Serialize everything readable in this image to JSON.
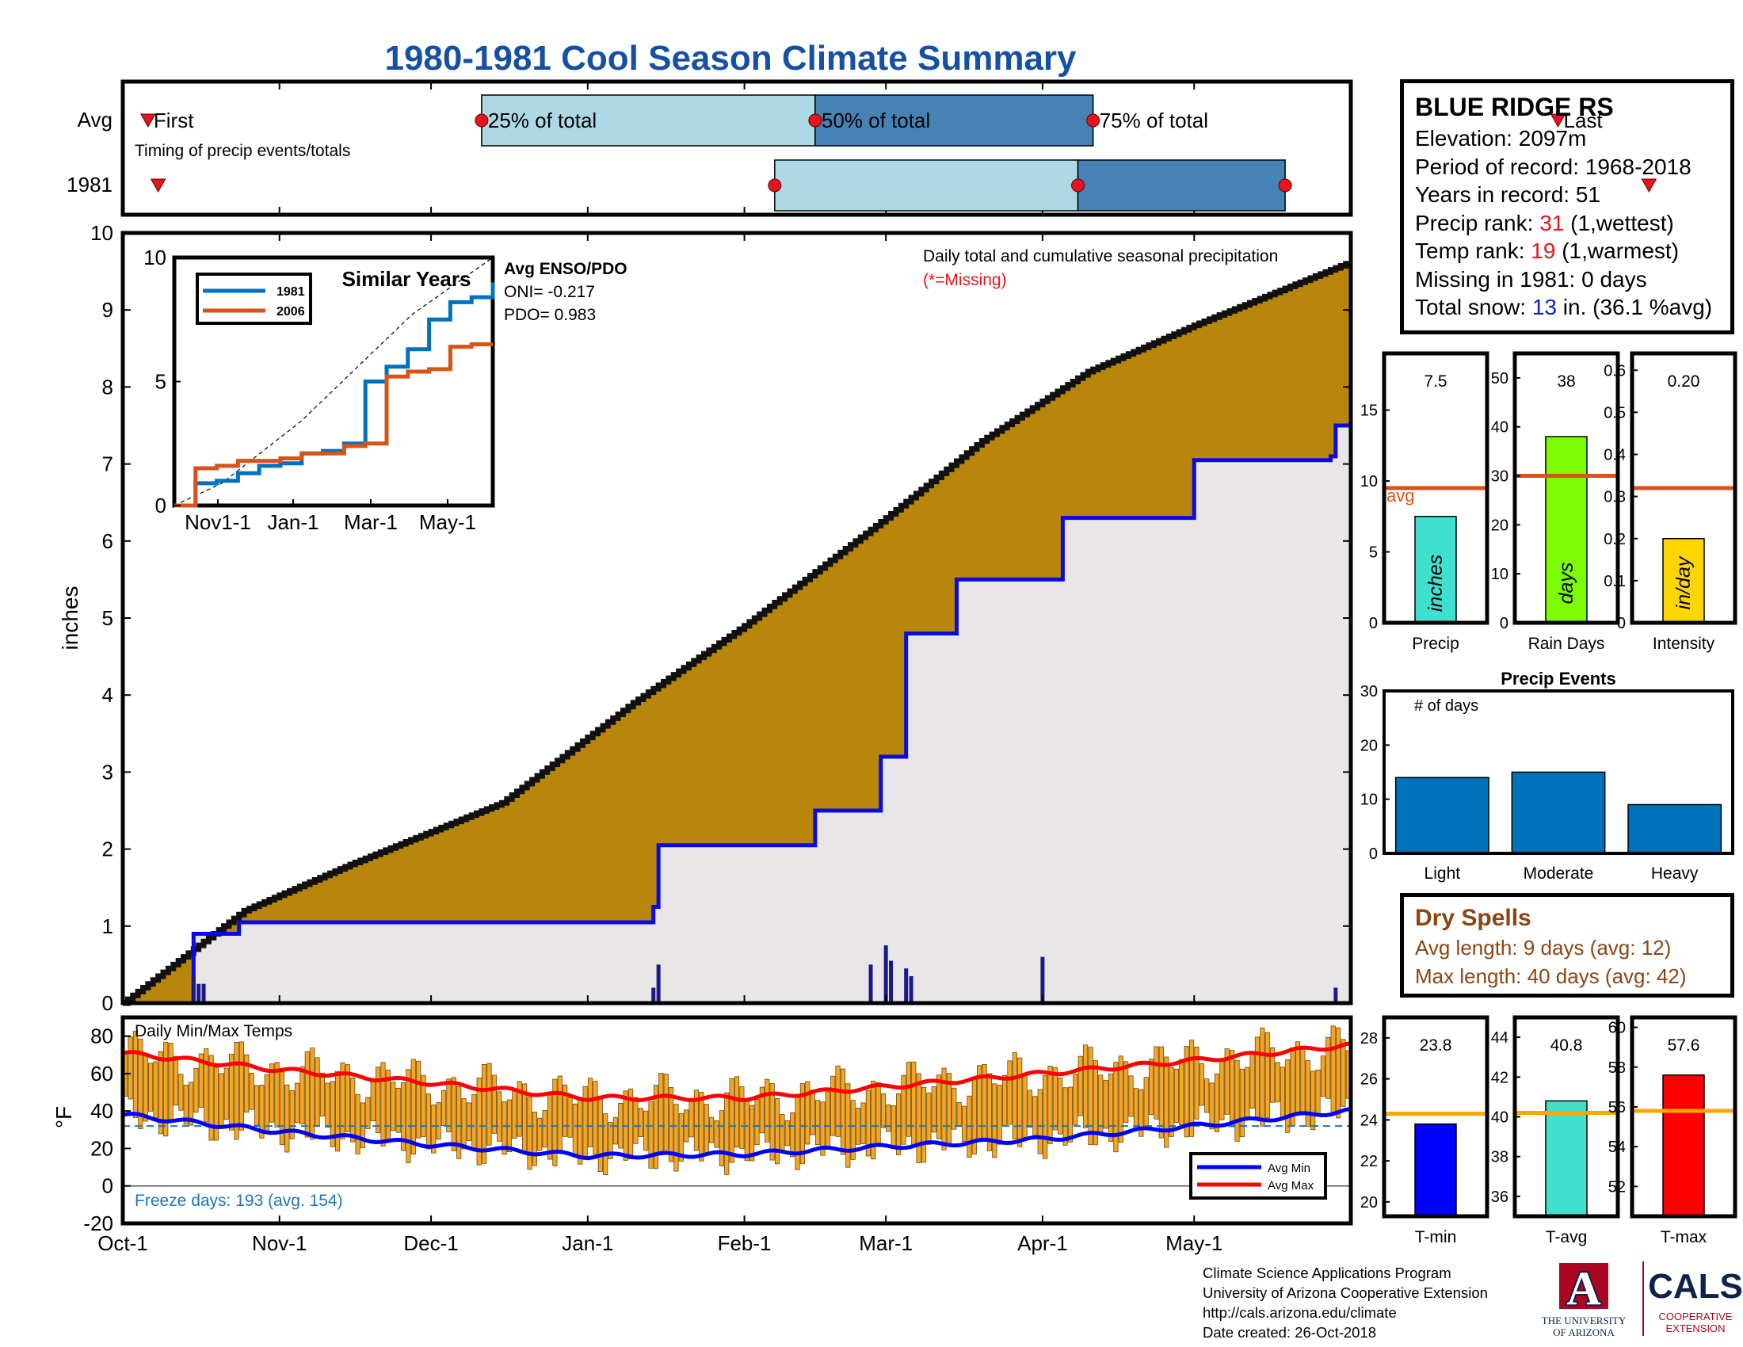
{
  "title": "1980-1981 Cool Season Climate Summary",
  "colors": {
    "title": "#1550a3",
    "cumulative_fill": "#b8860b",
    "avg_fill": "#e8e6e6",
    "avg_line": "#0a0ae6",
    "inset_1981": "#0072bd",
    "inset_2006": "#d95319",
    "bar_light": "#add8e6",
    "bar_dark": "#4682b4",
    "marker_red": "#e6141e",
    "precip_bar": "#40e0d0",
    "rain_days_bar": "#7cfc00",
    "intensity_bar": "#ffd700",
    "avg_line_orange": "#d95319",
    "events_bar": "#0072bd",
    "temp_bar": "#f5a623",
    "tmin_bar": "#0000ff",
    "tavg_bar": "#40e0d0",
    "tmax_bar": "#ff0000",
    "temp_avg_line": "#ffa500"
  },
  "timing": {
    "rows": [
      "Avg",
      "1981"
    ],
    "caption": "Timing of precip events/totals",
    "avg_labels": [
      "First",
      "25% of total",
      "50% of total",
      "75% of total",
      "Last"
    ],
    "avg_days": {
      "first": 5,
      "p25": 71,
      "p50": 137,
      "p75": 192,
      "last": 284
    },
    "obs_days": {
      "first": 7,
      "p25": 129,
      "p50": 189,
      "p75": 230,
      "last": 302
    }
  },
  "main_chart": {
    "ylabel": "inches",
    "yticks": [
      "0",
      "1",
      "2",
      "3",
      "4",
      "5",
      "6",
      "7",
      "8",
      "9",
      "10"
    ],
    "ylim": [
      0,
      10
    ],
    "legend_title": "Daily total and cumulative seasonal precipitation",
    "missing_note": "(*=Missing)",
    "xticks": [
      "Oct-1",
      "Nov-1",
      "Dec-1",
      "Jan-1",
      "Feb-1",
      "Mar-1",
      "Apr-1",
      "May-1"
    ]
  },
  "chart_data": [
    {
      "type": "area",
      "title": "Daily total and cumulative seasonal precipitation",
      "ylabel": "inches",
      "ylim": [
        0,
        10
      ],
      "x_range": [
        "Oct-1",
        "May-31"
      ],
      "series": [
        {
          "name": "Avg cumulative",
          "x": [
            "Oct-1",
            "Oct-10",
            "Oct-25",
            "Nov-15",
            "Dec-15",
            "Jan-10",
            "Feb-1",
            "Mar-1",
            "Mar-20",
            "Apr-10",
            "May-1",
            "May-31"
          ],
          "values": [
            0,
            0.45,
            1.2,
            1.8,
            2.6,
            3.9,
            4.9,
            6.3,
            7.3,
            8.2,
            8.8,
            9.6
          ]
        },
        {
          "name": "1981",
          "x": [
            "Oct-1",
            "Oct-14",
            "Oct-15",
            "Oct-24",
            "Jan-14",
            "Jan-15",
            "Feb-15",
            "Feb-28",
            "Mar-5",
            "Mar-15",
            "Apr-5",
            "May-1",
            "May-28",
            "May-29"
          ],
          "values": [
            0,
            0,
            0.9,
            1.05,
            1.25,
            2.05,
            2.5,
            3.2,
            4.8,
            5.5,
            6.3,
            7.05,
            7.1,
            7.5
          ]
        }
      ],
      "daily_precip": {
        "x": [
          "Oct-15",
          "Oct-16",
          "Oct-17",
          "Jan-14",
          "Jan-15",
          "Feb-26",
          "Mar-1",
          "Mar-2",
          "Mar-5",
          "Mar-6",
          "Apr-1",
          "May-29"
        ],
        "values": [
          0.35,
          0.25,
          0.25,
          0.2,
          0.5,
          0.5,
          0.75,
          0.55,
          0.45,
          0.35,
          0.6,
          0.2
        ]
      }
    },
    {
      "type": "line",
      "title": "Similar Years",
      "ylim": [
        0,
        10
      ],
      "yticks": [
        "0",
        "5",
        "10"
      ],
      "xticks": [
        "Nov1-1",
        "Jan-1",
        "Mar-1",
        "May-1"
      ],
      "series": [
        {
          "name": "1981",
          "values": [
            0,
            0.9,
            1.0,
            1.3,
            1.6,
            1.7,
            2.1,
            2.2,
            2.5,
            5.0,
            5.6,
            6.3,
            7.5,
            8.2,
            8.4,
            9.0
          ]
        },
        {
          "name": "2006",
          "values": [
            0,
            1.5,
            1.6,
            1.8,
            1.8,
            1.9,
            2.1,
            2.1,
            2.4,
            2.5,
            5.2,
            5.4,
            5.5,
            6.4,
            6.5,
            6.5
          ]
        }
      ],
      "annotations": {
        "heading": "Avg ENSO/PDO",
        "oni": "ONI= -0.217",
        "pdo": "PDO= 0.983"
      }
    },
    {
      "type": "bar",
      "title": "Precip",
      "values": [
        7.5
      ],
      "avg": 9.5,
      "ylim": [
        0,
        19
      ],
      "yticks": [
        "0",
        "5",
        "10",
        "15"
      ],
      "value_label": "7.5",
      "bar_label": "inches",
      "avg_label": "avg"
    },
    {
      "type": "bar",
      "title": "Rain Days",
      "values": [
        38
      ],
      "avg": 30,
      "ylim": [
        0,
        55
      ],
      "yticks": [
        "0",
        "10",
        "20",
        "30",
        "40",
        "50"
      ],
      "value_label": "38",
      "bar_label": "days"
    },
    {
      "type": "bar",
      "title": "Intensity",
      "values": [
        0.2
      ],
      "avg": 0.32,
      "ylim": [
        0,
        0.64
      ],
      "yticks": [
        "0",
        "0.1",
        "0.2",
        "0.3",
        "0.4",
        "0.5",
        "0.6"
      ],
      "value_label": "0.20",
      "bar_label": "in/day"
    },
    {
      "type": "bar",
      "title": "Precip Events",
      "categories": [
        "Light",
        "Moderate",
        "Heavy"
      ],
      "values": [
        14,
        15,
        9
      ],
      "ylim": [
        0,
        30
      ],
      "yticks": [
        "0",
        "10",
        "20",
        "30"
      ],
      "annotation": "# of days"
    },
    {
      "type": "bar",
      "title": "Daily Min/Max Temps",
      "ylabel": "°F",
      "ylim": [
        -20,
        90
      ],
      "yticks": [
        "-20",
        "0",
        "20",
        "40",
        "60",
        "80"
      ],
      "series": [
        {
          "name": "Avg Min"
        },
        {
          "name": "Avg Max"
        }
      ],
      "avg_max_x": [
        "Oct-1",
        "Nov-1",
        "Dec-1",
        "Jan-1",
        "Feb-1",
        "Mar-1",
        "Apr-1",
        "May-1",
        "May-31"
      ],
      "avg_max": [
        71,
        62,
        55,
        47,
        47,
        53,
        60,
        67,
        75
      ],
      "avg_min_x": [
        "Oct-1",
        "Nov-1",
        "Dec-1",
        "Jan-1",
        "Feb-1",
        "Mar-1",
        "Apr-1",
        "May-1",
        "May-31"
      ],
      "avg_min": [
        38,
        29,
        22,
        16,
        17,
        21,
        25,
        32,
        40
      ],
      "freeze_note": "Freeze days: 193 (avg. 154)"
    },
    {
      "type": "bar",
      "title": "T-min",
      "values": [
        23.8
      ],
      "avg": 24.3,
      "ylim": [
        19.3,
        29
      ],
      "yticks": [
        "20",
        "22",
        "24",
        "26",
        "28"
      ],
      "value_label": "23.8"
    },
    {
      "type": "bar",
      "title": "T-avg",
      "values": [
        40.8
      ],
      "avg": 40.2,
      "ylim": [
        35,
        45
      ],
      "yticks": [
        "36",
        "38",
        "40",
        "42",
        "44"
      ],
      "value_label": "40.8"
    },
    {
      "type": "bar",
      "title": "T-max",
      "values": [
        57.6
      ],
      "avg": 55.8,
      "ylim": [
        50.5,
        60.5
      ],
      "yticks": [
        "52",
        "54",
        "56",
        "58",
        "60"
      ],
      "value_label": "57.6"
    }
  ],
  "station": {
    "name": "BLUE RIDGE RS",
    "elev_label": "Elevation:",
    "elev_value": "2097m",
    "period_label": "Period of record:",
    "period_value": "1968-2018",
    "years_label": "Years in record:",
    "years_value": "51",
    "precip_rank_label": "Precip rank:",
    "precip_rank_value": "31",
    "precip_rank_note": "(1,wettest)",
    "temp_rank_label": "Temp rank:",
    "temp_rank_value": "19",
    "temp_rank_note": "(1,warmest)",
    "missing_label": "Missing in 1981:",
    "missing_value": "0 days",
    "snow_label": "Total snow:",
    "snow_value": "13",
    "snow_note": "in. (36.1 %avg)"
  },
  "dry_spells": {
    "heading": "Dry Spells",
    "avg_line": "Avg length: 9 days (avg: 12)",
    "max_line": "Max length: 40 days (avg: 42)"
  },
  "credits": {
    "line1": "Climate Science Applications Program",
    "line2": "University of Arizona Cooperative Extension",
    "line3": "http://cals.arizona.edu/climate",
    "line4": "Date created: 26-Oct-2018"
  },
  "logos": {
    "ua_letter": "A",
    "ua_line1": "THE UNIVERSITY",
    "ua_line2": "OF ARIZONA",
    "cals": "CALS",
    "cals_line1": "COOPERATIVE",
    "cals_line2": "EXTENSION"
  }
}
